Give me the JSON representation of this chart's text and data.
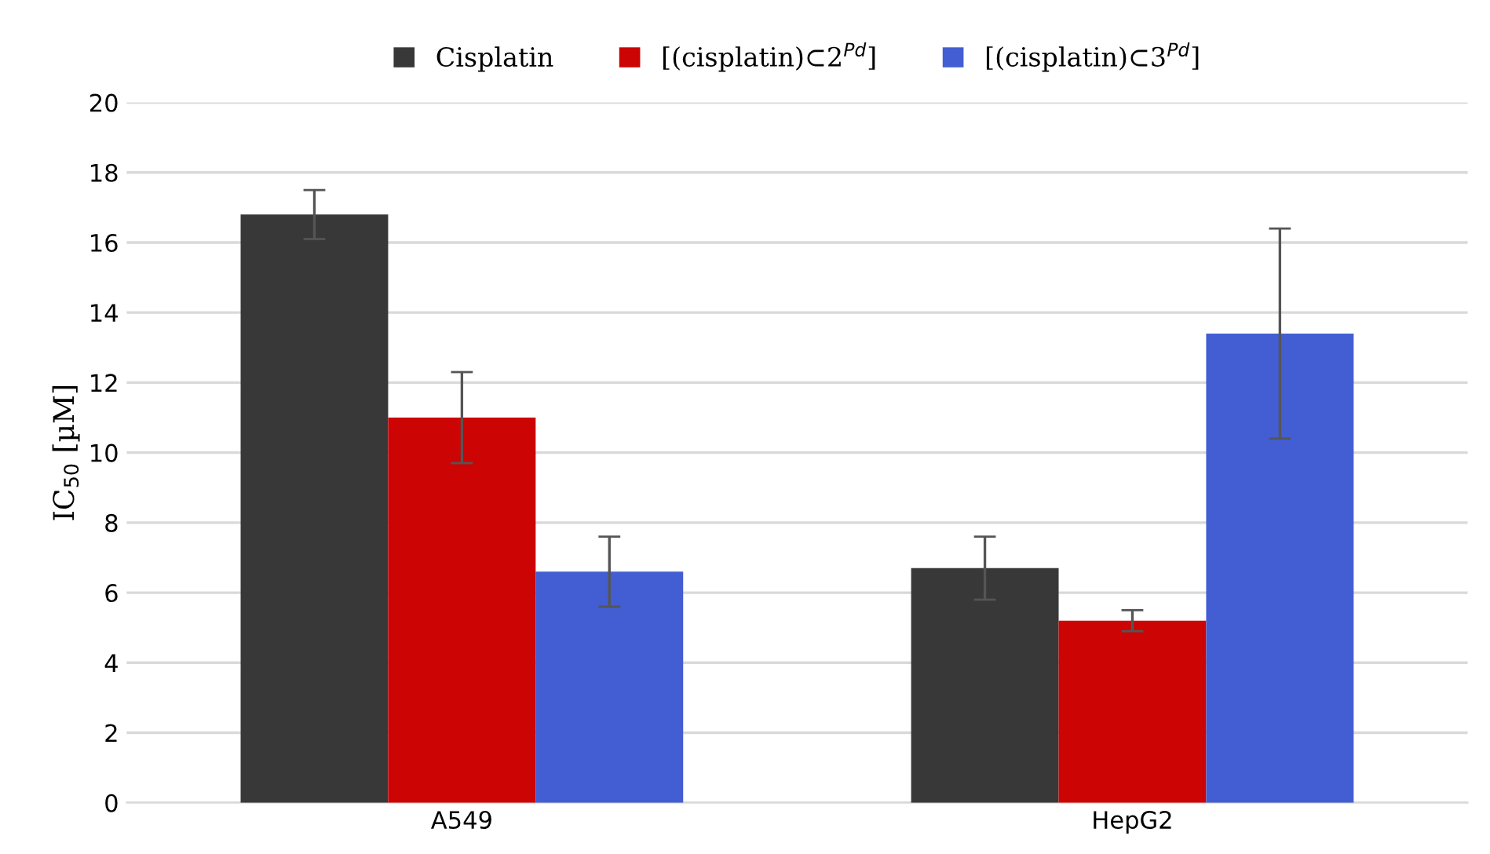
{
  "chart_data": {
    "type": "bar",
    "ylabel": "IC$_{50}$ [µM]",
    "categories": [
      "A549",
      "HepG2"
    ],
    "series": [
      {
        "name": "Cisplatin",
        "color": "#383838",
        "values": [
          16.8,
          6.7
        ],
        "errors": [
          0.7,
          0.9
        ]
      },
      {
        "name": "[(cisplatin)⊂2$^{Pd}$]",
        "color": "#cc0404",
        "values": [
          11.0,
          5.2
        ],
        "errors": [
          1.3,
          0.3
        ]
      },
      {
        "name": "[(cisplatin)⊂3$^{Pd}$]",
        "color": "#425ed2",
        "values": [
          6.6,
          13.4
        ],
        "errors": [
          1.0,
          3.0
        ]
      }
    ],
    "ylim": [
      0,
      20
    ],
    "yticks": [
      0,
      2,
      4,
      6,
      8,
      10,
      12,
      14,
      16,
      18,
      20
    ],
    "grid": "y",
    "legend": "top"
  }
}
